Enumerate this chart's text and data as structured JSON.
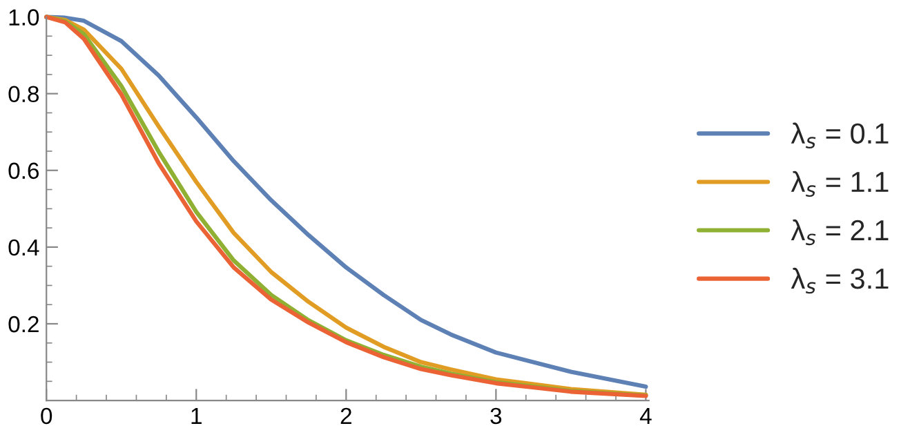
{
  "chart_data": {
    "type": "line",
    "x": [
      0,
      0.125,
      0.25,
      0.5,
      0.75,
      1,
      1.25,
      1.5,
      1.75,
      2,
      2.25,
      2.5,
      2.7,
      3,
      3.5,
      4
    ],
    "series": [
      {
        "name": "λ$_{s}$ = 0.1",
        "color": "#5e81b5",
        "values": [
          1,
          0.998,
          0.99,
          0.937,
          0.847,
          0.738,
          0.624,
          0.522,
          0.431,
          0.347,
          0.275,
          0.21,
          0.172,
          0.125,
          0.075,
          0.036
        ]
      },
      {
        "name": "λ$_{s}$ = 1.1",
        "color": "#e19c24",
        "values": [
          1,
          0.992,
          0.967,
          0.865,
          0.714,
          0.57,
          0.437,
          0.335,
          0.257,
          0.19,
          0.14,
          0.1,
          0.081,
          0.055,
          0.03,
          0.015
        ]
      },
      {
        "name": "λ$_{s}$ = 2.1",
        "color": "#8fb032",
        "values": [
          1,
          0.989,
          0.955,
          0.82,
          0.648,
          0.492,
          0.365,
          0.275,
          0.209,
          0.157,
          0.119,
          0.088,
          0.07,
          0.048,
          0.025,
          0.013
        ]
      },
      {
        "name": "λ$_{s}$ = 3.1",
        "color": "#eb6235",
        "values": [
          1,
          0.986,
          0.943,
          0.798,
          0.618,
          0.467,
          0.347,
          0.263,
          0.203,
          0.152,
          0.113,
          0.082,
          0.066,
          0.045,
          0.023,
          0.012
        ]
      }
    ],
    "xlim": [
      0,
      4.02
    ],
    "ylim": [
      0,
      1
    ],
    "xticks": [
      0,
      1,
      2,
      3,
      4
    ],
    "yticks": [
      0.2,
      0.4,
      0.6,
      0.8,
      {
        "value": 1,
        "label": "1.0"
      }
    ],
    "grid": false,
    "legend": "right",
    "line_style": "solid",
    "marker": "none"
  }
}
